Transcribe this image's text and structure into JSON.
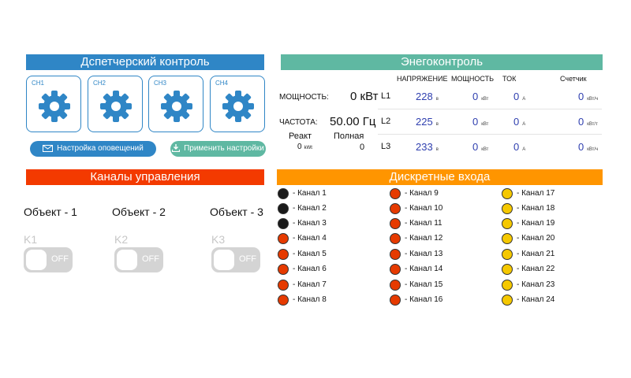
{
  "dispatch": {
    "title": "Дспетчерский контроль",
    "channels": [
      "CH1",
      "CH2",
      "CH3",
      "CH4"
    ],
    "notify_label": "Настройка оповещений",
    "apply_label": "Применить настройки"
  },
  "energy": {
    "title": "Энегоконтроль",
    "headers": {
      "voltage": "НАПРЯЖЕНИЕ",
      "power": "МОЩНОСТЬ",
      "current": "ТОК",
      "meter": "Счетчик"
    },
    "power_label": "МОЩНОСТЬ:",
    "power_value": "0",
    "power_unit": "кВт",
    "freq_label": "ЧАСТОТА:",
    "freq_value": "50.00",
    "freq_unit": "Гц",
    "react_label": "Реакт",
    "react_value": "0",
    "react_unit": "kWt",
    "full_label": "Полная",
    "full_value": "0",
    "phases": [
      {
        "name": "L1",
        "voltage": "228",
        "v_unit": "в",
        "power": "0",
        "p_unit": "кВт",
        "current": "0",
        "c_unit": "А",
        "meter": "0",
        "m_unit": "кВт/ч"
      },
      {
        "name": "L2",
        "voltage": "225",
        "v_unit": "в",
        "power": "0",
        "p_unit": "кВт",
        "current": "0",
        "c_unit": "А",
        "meter": "0",
        "m_unit": "кВт/т"
      },
      {
        "name": "L3",
        "voltage": "233",
        "v_unit": "в",
        "power": "0",
        "p_unit": "кВт",
        "current": "0",
        "c_unit": "А",
        "meter": "0",
        "m_unit": "кВт/ч"
      }
    ]
  },
  "control": {
    "title": "Каналы управления",
    "objects": [
      {
        "name": "Объект - 1",
        "key": "K1",
        "state": "OFF"
      },
      {
        "name": "Объект - 2",
        "key": "K2",
        "state": "OFF"
      },
      {
        "name": "Объект - 3",
        "key": "K3",
        "state": "OFF"
      }
    ]
  },
  "discrete": {
    "title": "Дискретные входа",
    "colors": {
      "black": "#1a1a1a",
      "red": "#e63a00",
      "yellow": "#f5c800"
    },
    "channels": [
      {
        "label": "- Канал 1",
        "color": "black"
      },
      {
        "label": "- Канал 2",
        "color": "black"
      },
      {
        "label": "- Канал 3",
        "color": "black"
      },
      {
        "label": "- Канал 4",
        "color": "red"
      },
      {
        "label": "- Канал 5",
        "color": "red"
      },
      {
        "label": "- Канал 6",
        "color": "red"
      },
      {
        "label": "- Канал 7",
        "color": "red"
      },
      {
        "label": "- Канал 8",
        "color": "red"
      },
      {
        "label": "- Канал 9",
        "color": "red"
      },
      {
        "label": "- Канал 10",
        "color": "red"
      },
      {
        "label": "- Канал 11",
        "color": "red"
      },
      {
        "label": "- Канал 12",
        "color": "red"
      },
      {
        "label": "- Канал 13",
        "color": "red"
      },
      {
        "label": "- Канал 14",
        "color": "red"
      },
      {
        "label": "- Канал 15",
        "color": "red"
      },
      {
        "label": "- Канал 16",
        "color": "red"
      },
      {
        "label": "- Канал 17",
        "color": "yellow"
      },
      {
        "label": "- Канал 18",
        "color": "yellow"
      },
      {
        "label": "- Канал 19",
        "color": "yellow"
      },
      {
        "label": "- Канал 20",
        "color": "yellow"
      },
      {
        "label": "- Канал 21",
        "color": "yellow"
      },
      {
        "label": "- Канал 22",
        "color": "yellow"
      },
      {
        "label": "- Канал 23",
        "color": "yellow"
      },
      {
        "label": "- Канал 24",
        "color": "yellow"
      }
    ]
  }
}
